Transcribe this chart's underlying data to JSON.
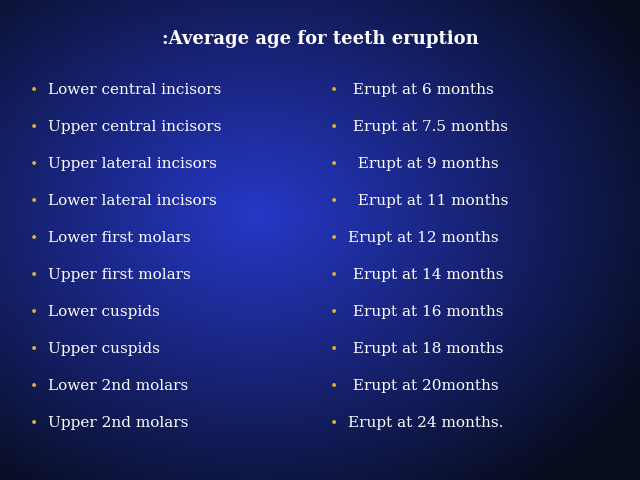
{
  "title": ":Average age for teeth eruption",
  "title_color": "#ffffff",
  "title_fontsize": 13,
  "left_items": [
    "Lower central incisors",
    "Upper central incisors",
    "Upper lateral incisors",
    "Lower lateral incisors",
    "Lower first molars",
    "Upper first molars",
    "Lower cuspids",
    "Upper cuspids",
    "Lower 2nd molars",
    "Upper 2nd molars"
  ],
  "right_items": [
    " Erupt at 6 months",
    " Erupt at 7.5 months",
    "  Erupt at 9 months",
    "  Erupt at 11 months",
    "Erupt at 12 months",
    " Erupt at 14 months",
    " Erupt at 16 months",
    " Erupt at 18 months",
    " Erupt at 20months",
    "Erupt at 24 months."
  ],
  "text_color": "#ffffff",
  "text_fontsize": 11,
  "bullet_color": "#d4af37",
  "bullet_char": "•",
  "bg_colors": [
    "#050a2e",
    "#0a1a6e",
    "#1230c8",
    "#0a1a6e",
    "#050a2e"
  ]
}
